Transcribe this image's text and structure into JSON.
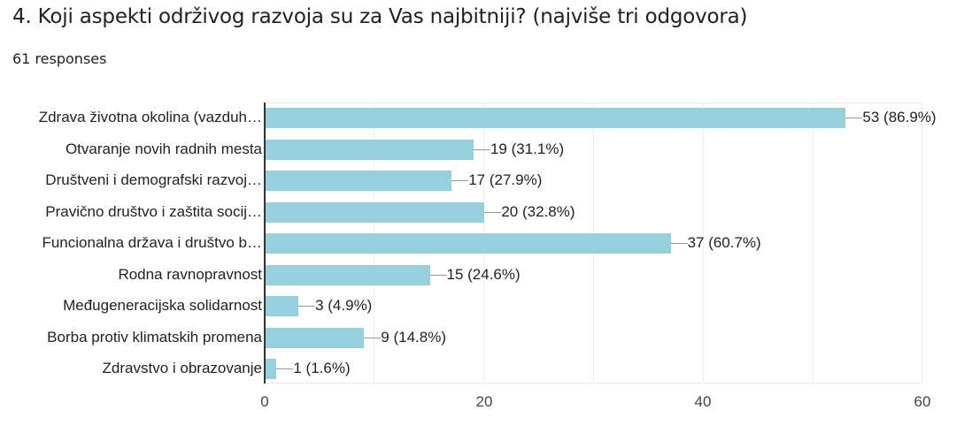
{
  "header": {
    "title": "4. Koji aspekti održivog razvoja su za Vas najbitniji? (najviše tri odgovora)",
    "responses": "61 responses"
  },
  "colors": {
    "bar": "#96d0dd",
    "axis": "#333333",
    "grid": "#efefef",
    "text": "#222222"
  },
  "chart_data": {
    "type": "bar",
    "orientation": "horizontal",
    "title": "4. Koji aspekti održivog razvoja su za Vas najbitniji? (najviše tri odgovora)",
    "subtitle": "61 responses",
    "xlabel": "",
    "ylabel": "",
    "xlim": [
      0,
      60
    ],
    "x_ticks": [
      "0",
      "20",
      "40",
      "60"
    ],
    "grid": true,
    "legend": "none",
    "categories": [
      "Zdrava životna okolina (vazduh…",
      "Otvaranje novih radnih mesta",
      "Društveni i demografski razvoj…",
      "Pravično društvo i zaštita socij…",
      "Funcionalna država i društvo b…",
      "Rodna ravnopravnost",
      "Međugeneracijska solidarnost",
      "Borba protiv klimatskih promena",
      "Zdravstvo i obrazovanje"
    ],
    "values": [
      53,
      19,
      17,
      20,
      37,
      15,
      3,
      9,
      1
    ],
    "percentages": [
      "86.9%",
      "31.1%",
      "27.9%",
      "32.8%",
      "60.7%",
      "24.6%",
      "4.9%",
      "14.8%",
      "1.6%"
    ],
    "data_labels": [
      "53 (86.9%)",
      "19 (31.1%)",
      "17 (27.9%)",
      "20 (32.8%)",
      "37 (60.7%)",
      "15 (24.6%)",
      "3 (4.9%)",
      "9 (14.8%)",
      "1 (1.6%)"
    ]
  }
}
